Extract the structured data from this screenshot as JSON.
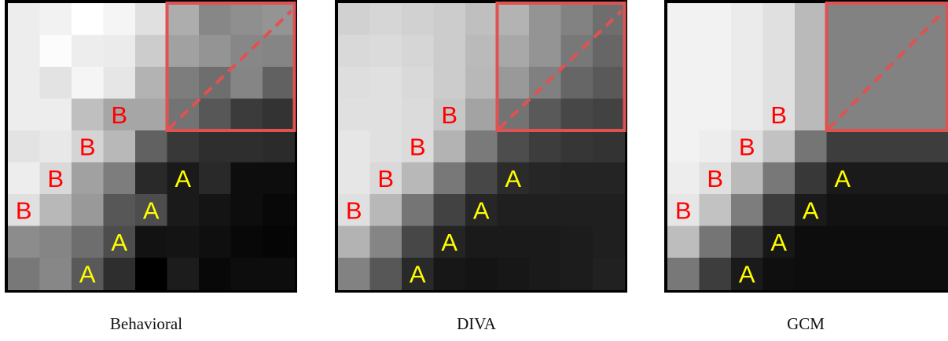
{
  "colors": {
    "highlight": "#e05252",
    "label_a": "#ffff00",
    "label_b": "#ff0000",
    "frame": "#000000"
  },
  "chart_data": [
    {
      "type": "heatmap",
      "caption": "Behavioral",
      "rows": 9,
      "cols": 9,
      "values": [
        [
          0.93,
          0.95,
          1.0,
          0.96,
          0.88,
          0.68,
          0.53,
          0.56,
          0.58
        ],
        [
          0.93,
          0.99,
          0.93,
          0.92,
          0.8,
          0.63,
          0.58,
          0.53,
          0.52
        ],
        [
          0.93,
          0.89,
          0.96,
          0.9,
          0.7,
          0.49,
          0.43,
          0.52,
          0.38
        ],
        [
          0.93,
          0.93,
          0.75,
          0.65,
          0.65,
          0.45,
          0.34,
          0.23,
          0.2
        ],
        [
          0.89,
          0.91,
          0.83,
          0.72,
          0.38,
          0.22,
          0.18,
          0.18,
          0.17
        ],
        [
          0.93,
          0.85,
          0.63,
          0.49,
          0.16,
          0.1,
          0.16,
          0.05,
          0.05
        ],
        [
          0.88,
          0.72,
          0.6,
          0.34,
          0.3,
          0.1,
          0.08,
          0.05,
          0.03
        ],
        [
          0.55,
          0.52,
          0.43,
          0.3,
          0.07,
          0.08,
          0.06,
          0.03,
          0.02
        ],
        [
          0.47,
          0.53,
          0.35,
          0.18,
          0.0,
          0.11,
          0.03,
          0.05,
          0.05
        ]
      ],
      "labels_a": [
        [
          8,
          2
        ],
        [
          7,
          3
        ],
        [
          6,
          4
        ],
        [
          5,
          5
        ]
      ],
      "labels_b": [
        [
          6,
          0
        ],
        [
          5,
          1
        ],
        [
          4,
          2
        ],
        [
          3,
          3
        ]
      ],
      "label_a_text": "A",
      "label_b_text": "B"
    },
    {
      "type": "heatmap",
      "caption": "DIVA",
      "rows": 9,
      "cols": 9,
      "values": [
        [
          0.82,
          0.84,
          0.82,
          0.8,
          0.75,
          0.7,
          0.58,
          0.51,
          0.43
        ],
        [
          0.85,
          0.86,
          0.84,
          0.8,
          0.73,
          0.66,
          0.58,
          0.47,
          0.4
        ],
        [
          0.87,
          0.88,
          0.85,
          0.8,
          0.72,
          0.6,
          0.5,
          0.4,
          0.35
        ],
        [
          0.88,
          0.88,
          0.86,
          0.78,
          0.64,
          0.45,
          0.35,
          0.28,
          0.26
        ],
        [
          0.9,
          0.88,
          0.86,
          0.7,
          0.48,
          0.3,
          0.24,
          0.21,
          0.2
        ],
        [
          0.9,
          0.85,
          0.72,
          0.47,
          0.28,
          0.17,
          0.15,
          0.14,
          0.14
        ],
        [
          0.88,
          0.72,
          0.46,
          0.26,
          0.15,
          0.12,
          0.12,
          0.12,
          0.12
        ],
        [
          0.7,
          0.52,
          0.28,
          0.14,
          0.1,
          0.1,
          0.1,
          0.11,
          0.12
        ],
        [
          0.51,
          0.34,
          0.16,
          0.09,
          0.08,
          0.09,
          0.1,
          0.11,
          0.13
        ]
      ],
      "labels_a": [
        [
          8,
          2
        ],
        [
          7,
          3
        ],
        [
          6,
          4
        ],
        [
          5,
          5
        ]
      ],
      "labels_b": [
        [
          6,
          0
        ],
        [
          5,
          1
        ],
        [
          4,
          2
        ],
        [
          3,
          3
        ]
      ],
      "label_a_text": "A",
      "label_b_text": "B"
    },
    {
      "type": "heatmap",
      "caption": "GCM",
      "rows": 9,
      "cols": 9,
      "values": [
        [
          0.95,
          0.95,
          0.92,
          0.88,
          0.73,
          0.51,
          0.51,
          0.51,
          0.51
        ],
        [
          0.95,
          0.95,
          0.92,
          0.88,
          0.73,
          0.51,
          0.51,
          0.51,
          0.51
        ],
        [
          0.95,
          0.95,
          0.92,
          0.88,
          0.73,
          0.51,
          0.51,
          0.51,
          0.51
        ],
        [
          0.95,
          0.95,
          0.92,
          0.88,
          0.73,
          0.51,
          0.51,
          0.51,
          0.51
        ],
        [
          0.95,
          0.93,
          0.88,
          0.76,
          0.46,
          0.24,
          0.24,
          0.24,
          0.24
        ],
        [
          0.93,
          0.88,
          0.73,
          0.47,
          0.22,
          0.1,
          0.1,
          0.1,
          0.1
        ],
        [
          0.9,
          0.76,
          0.49,
          0.24,
          0.1,
          0.07,
          0.07,
          0.07,
          0.07
        ],
        [
          0.74,
          0.46,
          0.22,
          0.09,
          0.05,
          0.05,
          0.05,
          0.05,
          0.05
        ],
        [
          0.47,
          0.24,
          0.1,
          0.06,
          0.05,
          0.05,
          0.05,
          0.05,
          0.05
        ]
      ],
      "labels_a": [
        [
          8,
          2
        ],
        [
          7,
          3
        ],
        [
          6,
          4
        ],
        [
          5,
          5
        ]
      ],
      "labels_b": [
        [
          6,
          0
        ],
        [
          5,
          1
        ],
        [
          4,
          2
        ],
        [
          3,
          3
        ]
      ],
      "label_a_text": "A",
      "label_b_text": "B"
    }
  ]
}
